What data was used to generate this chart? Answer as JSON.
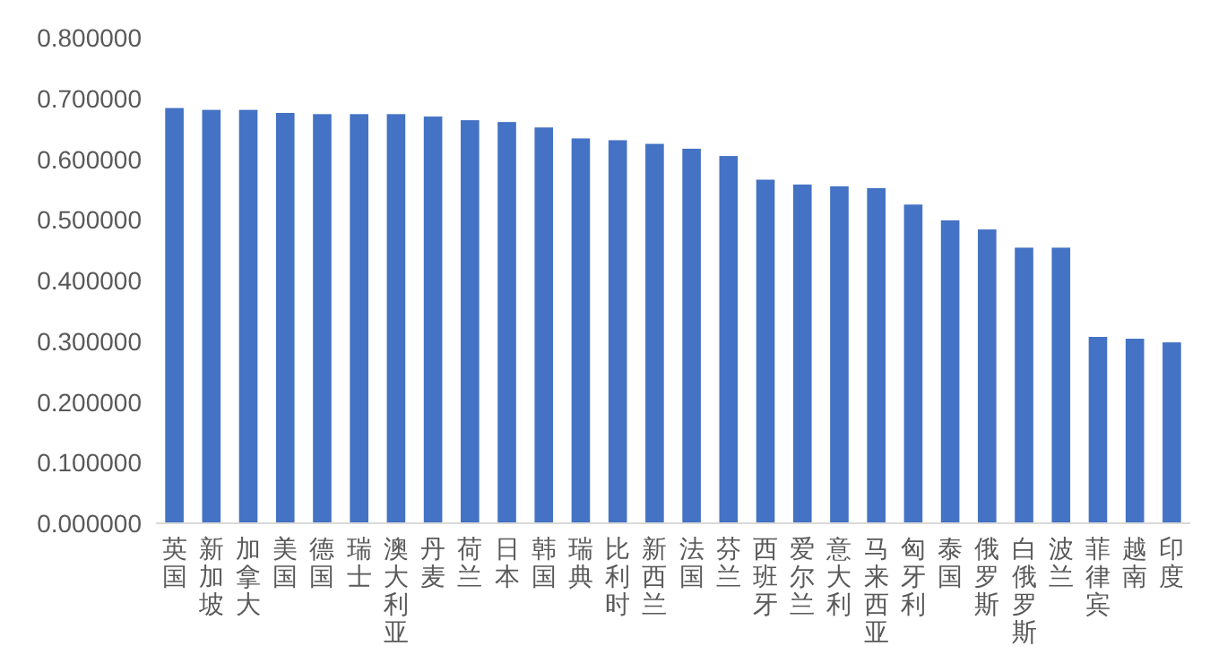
{
  "chart_data": {
    "type": "bar",
    "categories": [
      "英国",
      "新加坡",
      "加拿大",
      "美国",
      "德国",
      "瑞士",
      "澳大利亚",
      "丹麦",
      "荷兰",
      "日本",
      "韩国",
      "瑞典",
      "比利时",
      "新西兰",
      "法国",
      "芬兰",
      "西班牙",
      "爱尔兰",
      "意大利",
      "马来西亚",
      "匈牙利",
      "泰国",
      "俄罗斯",
      "白俄罗斯",
      "波兰",
      "菲律宾",
      "越南",
      "印度"
    ],
    "values": [
      0.684,
      0.681,
      0.681,
      0.676,
      0.674,
      0.674,
      0.674,
      0.67,
      0.664,
      0.661,
      0.652,
      0.634,
      0.631,
      0.625,
      0.617,
      0.605,
      0.566,
      0.558,
      0.555,
      0.552,
      0.525,
      0.499,
      0.484,
      0.454,
      0.454,
      0.307,
      0.304,
      0.298
    ],
    "color": "#4472c4",
    "ylim": [
      0,
      0.8
    ],
    "yticks": [
      {
        "value": 0,
        "label": "0.000000"
      },
      {
        "value": 0.1,
        "label": "0.100000"
      },
      {
        "value": 0.2,
        "label": "0.200000"
      },
      {
        "value": 0.3,
        "label": "0.300000"
      },
      {
        "value": 0.4,
        "label": "0.400000"
      },
      {
        "value": 0.5,
        "label": "0.500000"
      },
      {
        "value": 0.6,
        "label": "0.600000"
      },
      {
        "value": 0.7,
        "label": "0.700000"
      },
      {
        "value": 0.8,
        "label": "0.800000"
      }
    ],
    "grid": false
  }
}
